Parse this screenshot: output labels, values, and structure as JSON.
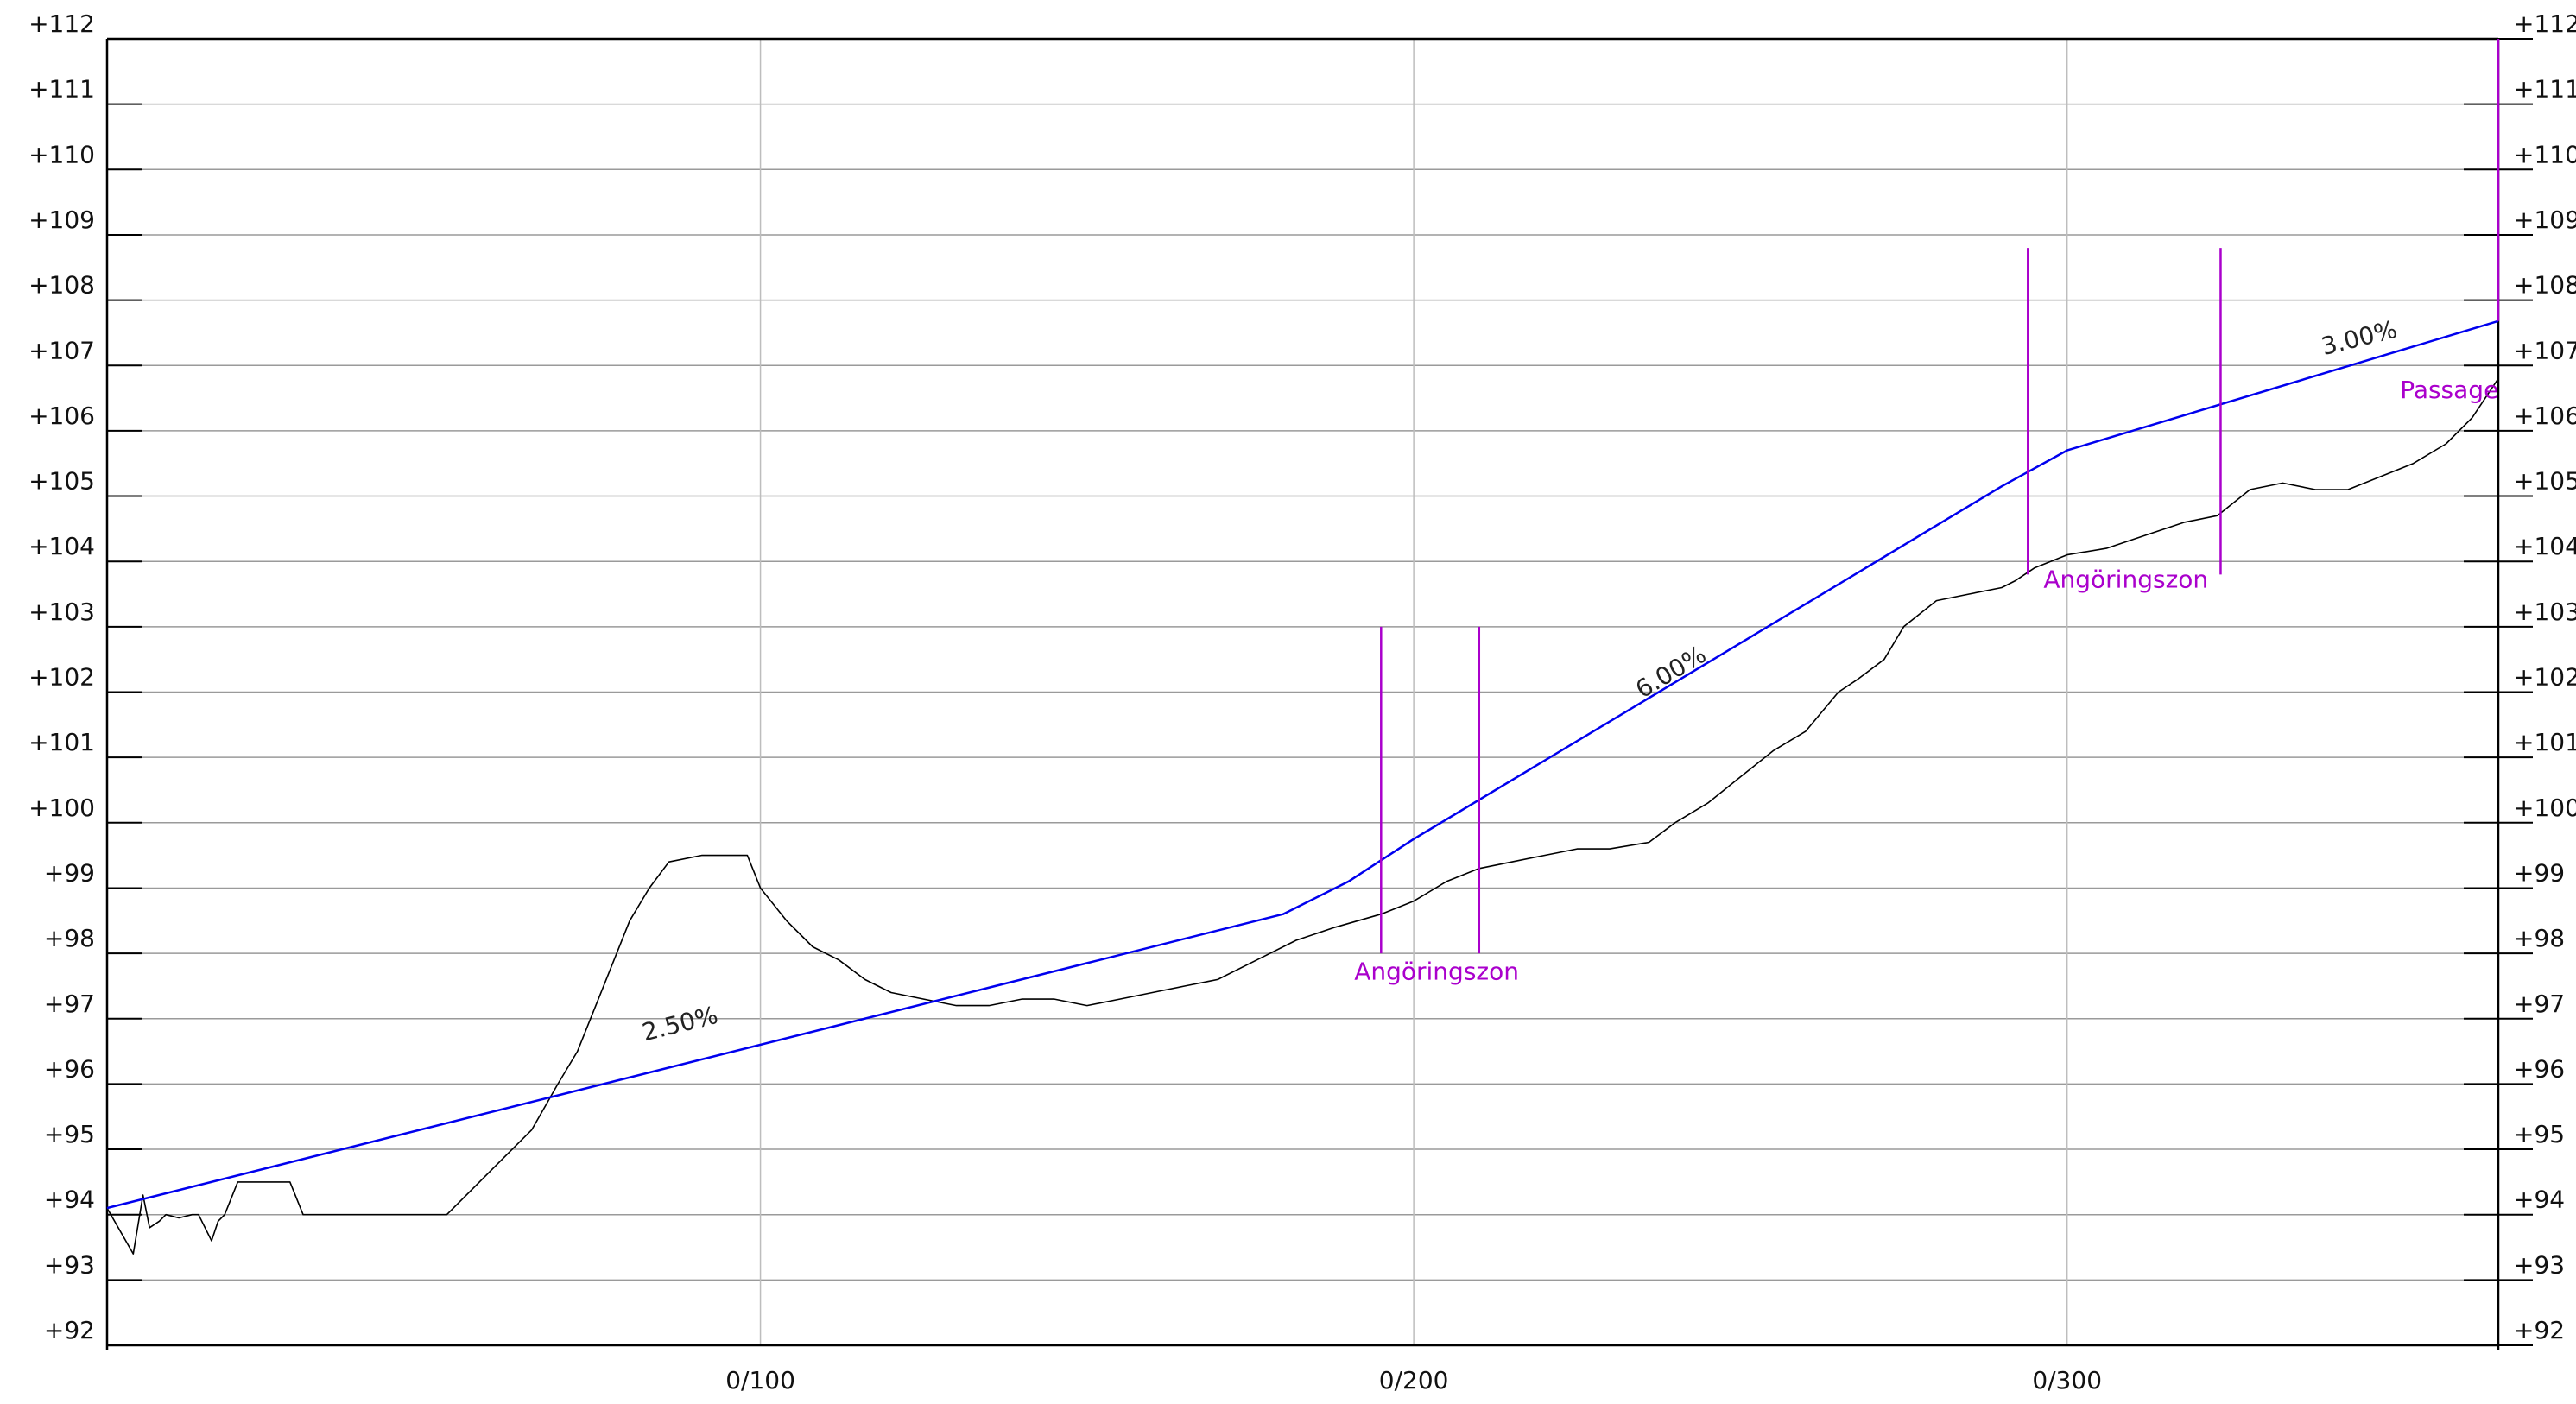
{
  "chart_data": {
    "type": "line",
    "title": "",
    "xlabel": "",
    "ylabel": "",
    "xlim": [
      0,
      366
    ],
    "ylim": [
      92,
      112
    ],
    "grid": true,
    "x_ticks": [
      {
        "value": 100,
        "label": "0/100"
      },
      {
        "value": 200,
        "label": "0/200"
      },
      {
        "value": 300,
        "label": "0/300"
      }
    ],
    "y_ticks": [
      {
        "value": 112,
        "label": "+112"
      },
      {
        "value": 111,
        "label": "+111"
      },
      {
        "value": 110,
        "label": "+110"
      },
      {
        "value": 109,
        "label": "+109"
      },
      {
        "value": 108,
        "label": "+108"
      },
      {
        "value": 107,
        "label": "+107"
      },
      {
        "value": 106,
        "label": "+106"
      },
      {
        "value": 105,
        "label": "+105"
      },
      {
        "value": 104,
        "label": "+104"
      },
      {
        "value": 103,
        "label": "+103"
      },
      {
        "value": 102,
        "label": "+102"
      },
      {
        "value": 101,
        "label": "+101"
      },
      {
        "value": 100,
        "label": "+100"
      },
      {
        "value": 99,
        "label": "+99"
      },
      {
        "value": 98,
        "label": "+98"
      },
      {
        "value": 97,
        "label": "+97"
      },
      {
        "value": 96,
        "label": "+96"
      },
      {
        "value": 95,
        "label": "+95"
      },
      {
        "value": 94,
        "label": "+94"
      },
      {
        "value": 93,
        "label": "+93"
      },
      {
        "value": 92,
        "label": "+92"
      }
    ],
    "series": [
      {
        "color": "#000000",
        "points": [
          [
            0,
            94.1
          ],
          [
            4,
            93.4
          ],
          [
            5.5,
            94.3
          ],
          [
            6.5,
            93.8
          ],
          [
            8,
            93.9
          ],
          [
            9,
            94
          ],
          [
            11,
            93.95
          ],
          [
            13,
            94
          ],
          [
            14,
            94
          ],
          [
            16,
            93.6
          ],
          [
            17,
            93.9
          ],
          [
            18,
            94
          ],
          [
            20,
            94.5
          ],
          [
            23,
            94.5
          ],
          [
            28,
            94.5
          ],
          [
            30,
            94
          ],
          [
            35,
            94
          ],
          [
            45,
            94
          ],
          [
            52,
            94
          ],
          [
            60,
            94.8
          ],
          [
            65,
            95.3
          ],
          [
            69,
            96
          ],
          [
            72,
            96.5
          ],
          [
            76,
            97.5
          ],
          [
            80,
            98.5
          ],
          [
            83,
            99
          ],
          [
            86,
            99.4
          ],
          [
            91,
            99.5
          ],
          [
            94,
            99.5
          ],
          [
            96,
            99.5
          ],
          [
            98,
            99.5
          ],
          [
            100,
            99
          ],
          [
            104,
            98.5
          ],
          [
            108,
            98.1
          ],
          [
            112,
            97.9
          ],
          [
            116,
            97.6
          ],
          [
            120,
            97.4
          ],
          [
            125,
            97.3
          ],
          [
            130,
            97.2
          ],
          [
            135,
            97.2
          ],
          [
            140,
            97.3
          ],
          [
            145,
            97.3
          ],
          [
            150,
            97.2
          ],
          [
            155,
            97.3
          ],
          [
            160,
            97.4
          ],
          [
            165,
            97.5
          ],
          [
            170,
            97.6
          ],
          [
            176,
            97.9
          ],
          [
            182,
            98.2
          ],
          [
            188,
            98.4
          ],
          [
            195,
            98.6
          ],
          [
            200,
            98.8
          ],
          [
            205,
            99.1
          ],
          [
            210,
            99.3
          ],
          [
            215,
            99.4
          ],
          [
            220,
            99.5
          ],
          [
            225,
            99.6
          ],
          [
            230,
            99.6
          ],
          [
            236,
            99.7
          ],
          [
            240,
            100
          ],
          [
            245,
            100.3
          ],
          [
            250,
            100.7
          ],
          [
            255,
            101.1
          ],
          [
            260,
            101.4
          ],
          [
            265,
            102
          ],
          [
            268,
            102.2
          ],
          [
            272,
            102.5
          ],
          [
            275,
            103
          ],
          [
            280,
            103.4
          ],
          [
            285,
            103.5
          ],
          [
            290,
            103.6
          ],
          [
            292,
            103.7
          ],
          [
            295,
            103.9
          ],
          [
            300,
            104.1
          ],
          [
            306,
            104.2
          ],
          [
            312,
            104.4
          ],
          [
            318,
            104.6
          ],
          [
            323,
            104.7
          ],
          [
            328,
            105.1
          ],
          [
            333,
            105.2
          ],
          [
            338,
            105.1
          ],
          [
            343,
            105.1
          ],
          [
            348,
            105.3
          ],
          [
            353,
            105.5
          ],
          [
            358,
            105.8
          ],
          [
            362,
            106.2
          ],
          [
            366,
            106.8
          ]
        ]
      },
      {
        "color": "#0000ee",
        "grades": [
          "2.50%",
          "6.00%",
          "3.00%"
        ],
        "points": [
          [
            0,
            94.1
          ],
          [
            150,
            97.85
          ],
          [
            180,
            98.6
          ],
          [
            190,
            99.1
          ],
          [
            200,
            99.75
          ],
          [
            250,
            102.75
          ],
          [
            290,
            105.15
          ],
          [
            300,
            105.7
          ],
          [
            310,
            106
          ],
          [
            366,
            107.68
          ]
        ]
      }
    ],
    "annotations": [
      {
        "text": "2.50%",
        "x": 88,
        "y": 96.8,
        "rotate": -14,
        "color": "#222222"
      },
      {
        "text": "6.00%",
        "x": 240,
        "y": 102.2,
        "rotate": -31,
        "color": "#222222"
      },
      {
        "text": "3.00%",
        "x": 345,
        "y": 107.3,
        "rotate": -14,
        "color": "#222222"
      },
      {
        "text": "Angöringszon",
        "x": 203.5,
        "y": 97.6,
        "rotate": 0,
        "color": "#aa00cc"
      },
      {
        "text": "Angöringszon",
        "x": 309,
        "y": 103.6,
        "rotate": 0,
        "color": "#aa00cc"
      },
      {
        "text": "Passage",
        "x": 358.5,
        "y": 106.5,
        "rotate": 0,
        "color": "#aa00cc"
      }
    ],
    "vertical_markers": [
      {
        "x": 195,
        "y1": 98,
        "y2": 103,
        "color": "#aa00cc"
      },
      {
        "x": 210,
        "y1": 98,
        "y2": 103,
        "color": "#aa00cc"
      },
      {
        "x": 294,
        "y1": 103.8,
        "y2": 108.8,
        "color": "#aa00cc"
      },
      {
        "x": 323.5,
        "y1": 103.8,
        "y2": 108.8,
        "color": "#aa00cc"
      },
      {
        "x": 366,
        "y1": 107.68,
        "y2": 112,
        "color": "#aa00cc"
      }
    ]
  }
}
